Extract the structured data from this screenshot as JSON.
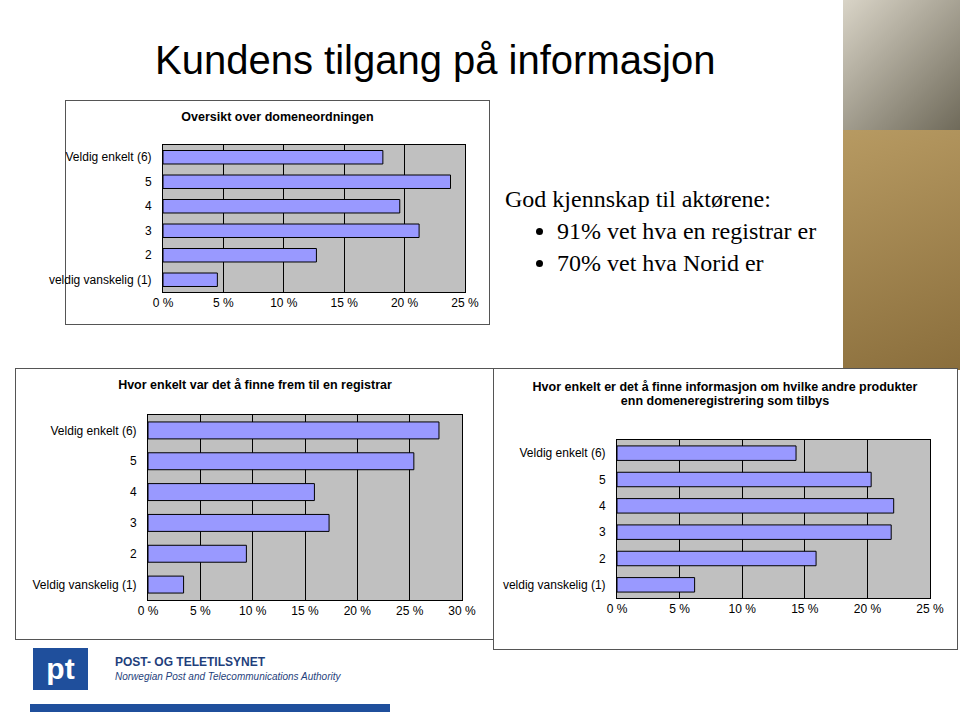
{
  "title": "Kundens tilgang på informasjon",
  "text_box": {
    "heading": "God kjennskap til aktørene:",
    "bullets": [
      "91% vet hva en registrar er",
      "70% vet hva Norid er"
    ]
  },
  "footer": {
    "logo": "pt",
    "name": "POST- OG TELETILSYNET",
    "subtitle": "Norwegian Post and Telecommunications Authority"
  },
  "chart_data": [
    {
      "type": "bar",
      "title": "Oversikt over domeneordningen",
      "orientation": "horizontal",
      "categories": [
        "Veldig enkelt (6)",
        "5",
        "4",
        "3",
        "2",
        "veldig vanskelig (1)"
      ],
      "values": [
        18.2,
        23.8,
        19.6,
        21.2,
        12.7,
        4.5
      ],
      "color": "#9999ff",
      "xlim": [
        0,
        25
      ],
      "xticks": [
        {
          "value": 0,
          "label": "0 %"
        },
        {
          "value": 5,
          "label": "5 %"
        },
        {
          "value": 10,
          "label": "10 %"
        },
        {
          "value": 15,
          "label": "15 %"
        },
        {
          "value": 20,
          "label": "20 %"
        },
        {
          "value": 25,
          "label": "25 %"
        }
      ],
      "grid": true
    },
    {
      "type": "bar",
      "title": "Hvor enkelt var det å finne frem til en registrar",
      "orientation": "horizontal",
      "categories": [
        "Veldig enkelt (6)",
        "5",
        "4",
        "3",
        "2",
        "Veldig vanskelig (1)"
      ],
      "values": [
        27.8,
        25.4,
        15.9,
        17.3,
        9.4,
        3.4
      ],
      "color": "#9999ff",
      "xlim": [
        0,
        30
      ],
      "xticks": [
        {
          "value": 0,
          "label": "0 %"
        },
        {
          "value": 5,
          "label": "5 %"
        },
        {
          "value": 10,
          "label": "10 %"
        },
        {
          "value": 15,
          "label": "15 %"
        },
        {
          "value": 20,
          "label": "20 %"
        },
        {
          "value": 25,
          "label": "25 %"
        },
        {
          "value": 30,
          "label": "30 %"
        }
      ],
      "grid": true
    },
    {
      "type": "bar",
      "title": "Hvor enkelt er det å finne informasjon om hvilke andre produkter enn domeneregistrering som tilbys",
      "orientation": "horizontal",
      "categories": [
        "Veldig enkelt (6)",
        "5",
        "4",
        "3",
        "2",
        "veldig vanskelig (1)"
      ],
      "values": [
        14.3,
        20.3,
        22.1,
        21.9,
        15.9,
        6.2
      ],
      "color": "#9999ff",
      "xlim": [
        0,
        25
      ],
      "xticks": [
        {
          "value": 0,
          "label": "0 %"
        },
        {
          "value": 5,
          "label": "5 %"
        },
        {
          "value": 10,
          "label": "10 %"
        },
        {
          "value": 15,
          "label": "15 %"
        },
        {
          "value": 20,
          "label": "20 %"
        },
        {
          "value": 25,
          "label": "25 %"
        }
      ],
      "grid": true
    }
  ]
}
